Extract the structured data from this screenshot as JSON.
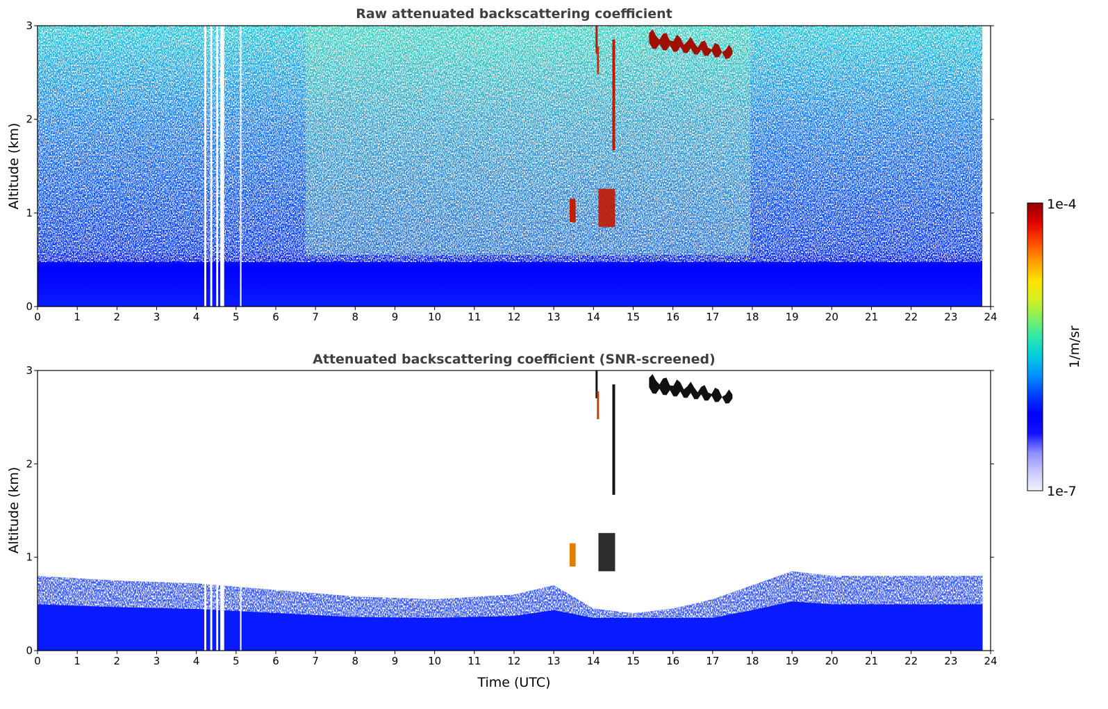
{
  "chart_data": [
    {
      "type": "heatmap",
      "title": "Raw attenuated backscattering coefficient",
      "xlabel": "",
      "ylabel": "Altitude (km)",
      "xlim": [
        0,
        24
      ],
      "ylim": [
        0,
        3
      ],
      "x_ticks": [
        "0",
        "1",
        "2",
        "3",
        "4",
        "5",
        "6",
        "7",
        "8",
        "9",
        "10",
        "11",
        "12",
        "13",
        "14",
        "15",
        "16",
        "17",
        "18",
        "19",
        "20",
        "21",
        "22",
        "23",
        "24"
      ],
      "y_ticks": [
        "0",
        "1",
        "2",
        "3"
      ],
      "data_end_hour": 23.8,
      "boundary_layer_top_km": 0.45,
      "gaps_hours": [
        [
          4.2,
          4.25
        ],
        [
          4.35,
          4.4
        ],
        [
          4.5,
          4.55
        ],
        [
          4.6,
          4.7
        ],
        [
          5.1,
          5.12
        ]
      ],
      "features": [
        {
          "name": "elevated cloud",
          "hours": [
            15.4,
            17.5
          ],
          "altitude_km": [
            2.6,
            2.95
          ]
        },
        {
          "name": "vertical cloud streak",
          "hours": [
            14.0,
            14.6
          ],
          "altitude_km": [
            0.85,
            3.0
          ]
        },
        {
          "name": "low cloud",
          "hours": [
            13.4,
            13.55
          ],
          "altitude_km": [
            0.9,
            1.15
          ]
        }
      ]
    },
    {
      "type": "heatmap",
      "title": "Attenuated backscattering coefficient (SNR-screened)",
      "xlabel": "Time (UTC)",
      "ylabel": "Altitude (km)",
      "xlim": [
        0,
        24
      ],
      "ylim": [
        0,
        3
      ],
      "x_ticks": [
        "0",
        "1",
        "2",
        "3",
        "4",
        "5",
        "6",
        "7",
        "8",
        "9",
        "10",
        "11",
        "12",
        "13",
        "14",
        "15",
        "16",
        "17",
        "18",
        "19",
        "20",
        "21",
        "22",
        "23",
        "24"
      ],
      "y_ticks": [
        "0",
        "1",
        "2",
        "3"
      ],
      "data_end_hour": 23.8,
      "boundary_layer_top_km": [
        {
          "hour": 0,
          "km": 0.8
        },
        {
          "hour": 2,
          "km": 0.75
        },
        {
          "hour": 4,
          "km": 0.72
        },
        {
          "hour": 6,
          "km": 0.65
        },
        {
          "hour": 8,
          "km": 0.58
        },
        {
          "hour": 10,
          "km": 0.55
        },
        {
          "hour": 12,
          "km": 0.6
        },
        {
          "hour": 13,
          "km": 0.7
        },
        {
          "hour": 14,
          "km": 0.45
        },
        {
          "hour": 15,
          "km": 0.4
        },
        {
          "hour": 16,
          "km": 0.45
        },
        {
          "hour": 17,
          "km": 0.55
        },
        {
          "hour": 18,
          "km": 0.7
        },
        {
          "hour": 19,
          "km": 0.85
        },
        {
          "hour": 20,
          "km": 0.8
        },
        {
          "hour": 22,
          "km": 0.8
        },
        {
          "hour": 23.8,
          "km": 0.8
        }
      ],
      "features": [
        {
          "name": "elevated cloud",
          "hours": [
            15.4,
            17.5
          ],
          "altitude_km": [
            2.6,
            2.95
          ]
        },
        {
          "name": "vertical cloud streak",
          "hours": [
            14.0,
            14.6
          ],
          "altitude_km": [
            0.85,
            3.0
          ]
        },
        {
          "name": "low cloud",
          "hours": [
            13.4,
            13.55
          ],
          "altitude_km": [
            0.9,
            1.15
          ]
        }
      ]
    }
  ],
  "colorbar": {
    "label": "1/m/sr",
    "max_label": "1e-4",
    "min_label": "1e-7",
    "scale": "log",
    "colormap": [
      "#f2f2ff",
      "#c8c8ff",
      "#8c8cff",
      "#1010ff",
      "#0000ff",
      "#0040ff",
      "#0090ff",
      "#00ccdd",
      "#2ee8b0",
      "#80f060",
      "#d8f020",
      "#ffe000",
      "#ff9900",
      "#ff4400",
      "#e00000",
      "#900000"
    ]
  }
}
